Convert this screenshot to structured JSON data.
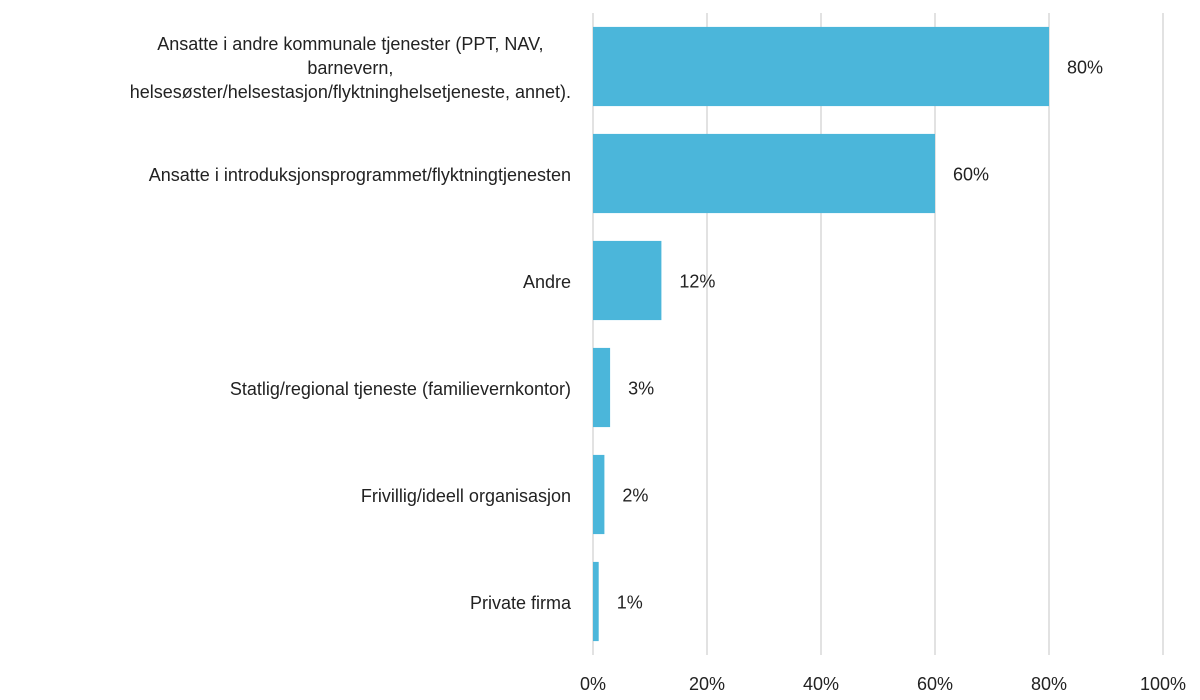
{
  "chart_data": {
    "type": "bar",
    "orientation": "horizontal",
    "categories": [
      "Ansatte i andre kommunale tjenester (PPT, NAV,\nbarnevern,\nhelsesøster/helsestasjon/flyktninghelsetjeneste, annet).",
      "Ansatte i introduksjonsprogrammet/flyktningtjenesten",
      "Andre",
      "Statlig/regional tjeneste (familievernkontor)",
      "Frivillig/ideell organisasjon",
      "Private firma"
    ],
    "values": [
      80,
      60,
      12,
      3,
      2,
      1
    ],
    "value_labels": [
      "80%",
      "60%",
      "12%",
      "3%",
      "2%",
      "1%"
    ],
    "color": "#4bb6da",
    "xlim": [
      0,
      100
    ],
    "xticks": [
      {
        "value": 0,
        "label": "0%"
      },
      {
        "value": 20,
        "label": "20%"
      },
      {
        "value": 40,
        "label": "40%"
      },
      {
        "value": 60,
        "label": "60%"
      },
      {
        "value": 80,
        "label": "80%"
      },
      {
        "value": 100,
        "label": "100%"
      }
    ],
    "grid": true
  }
}
